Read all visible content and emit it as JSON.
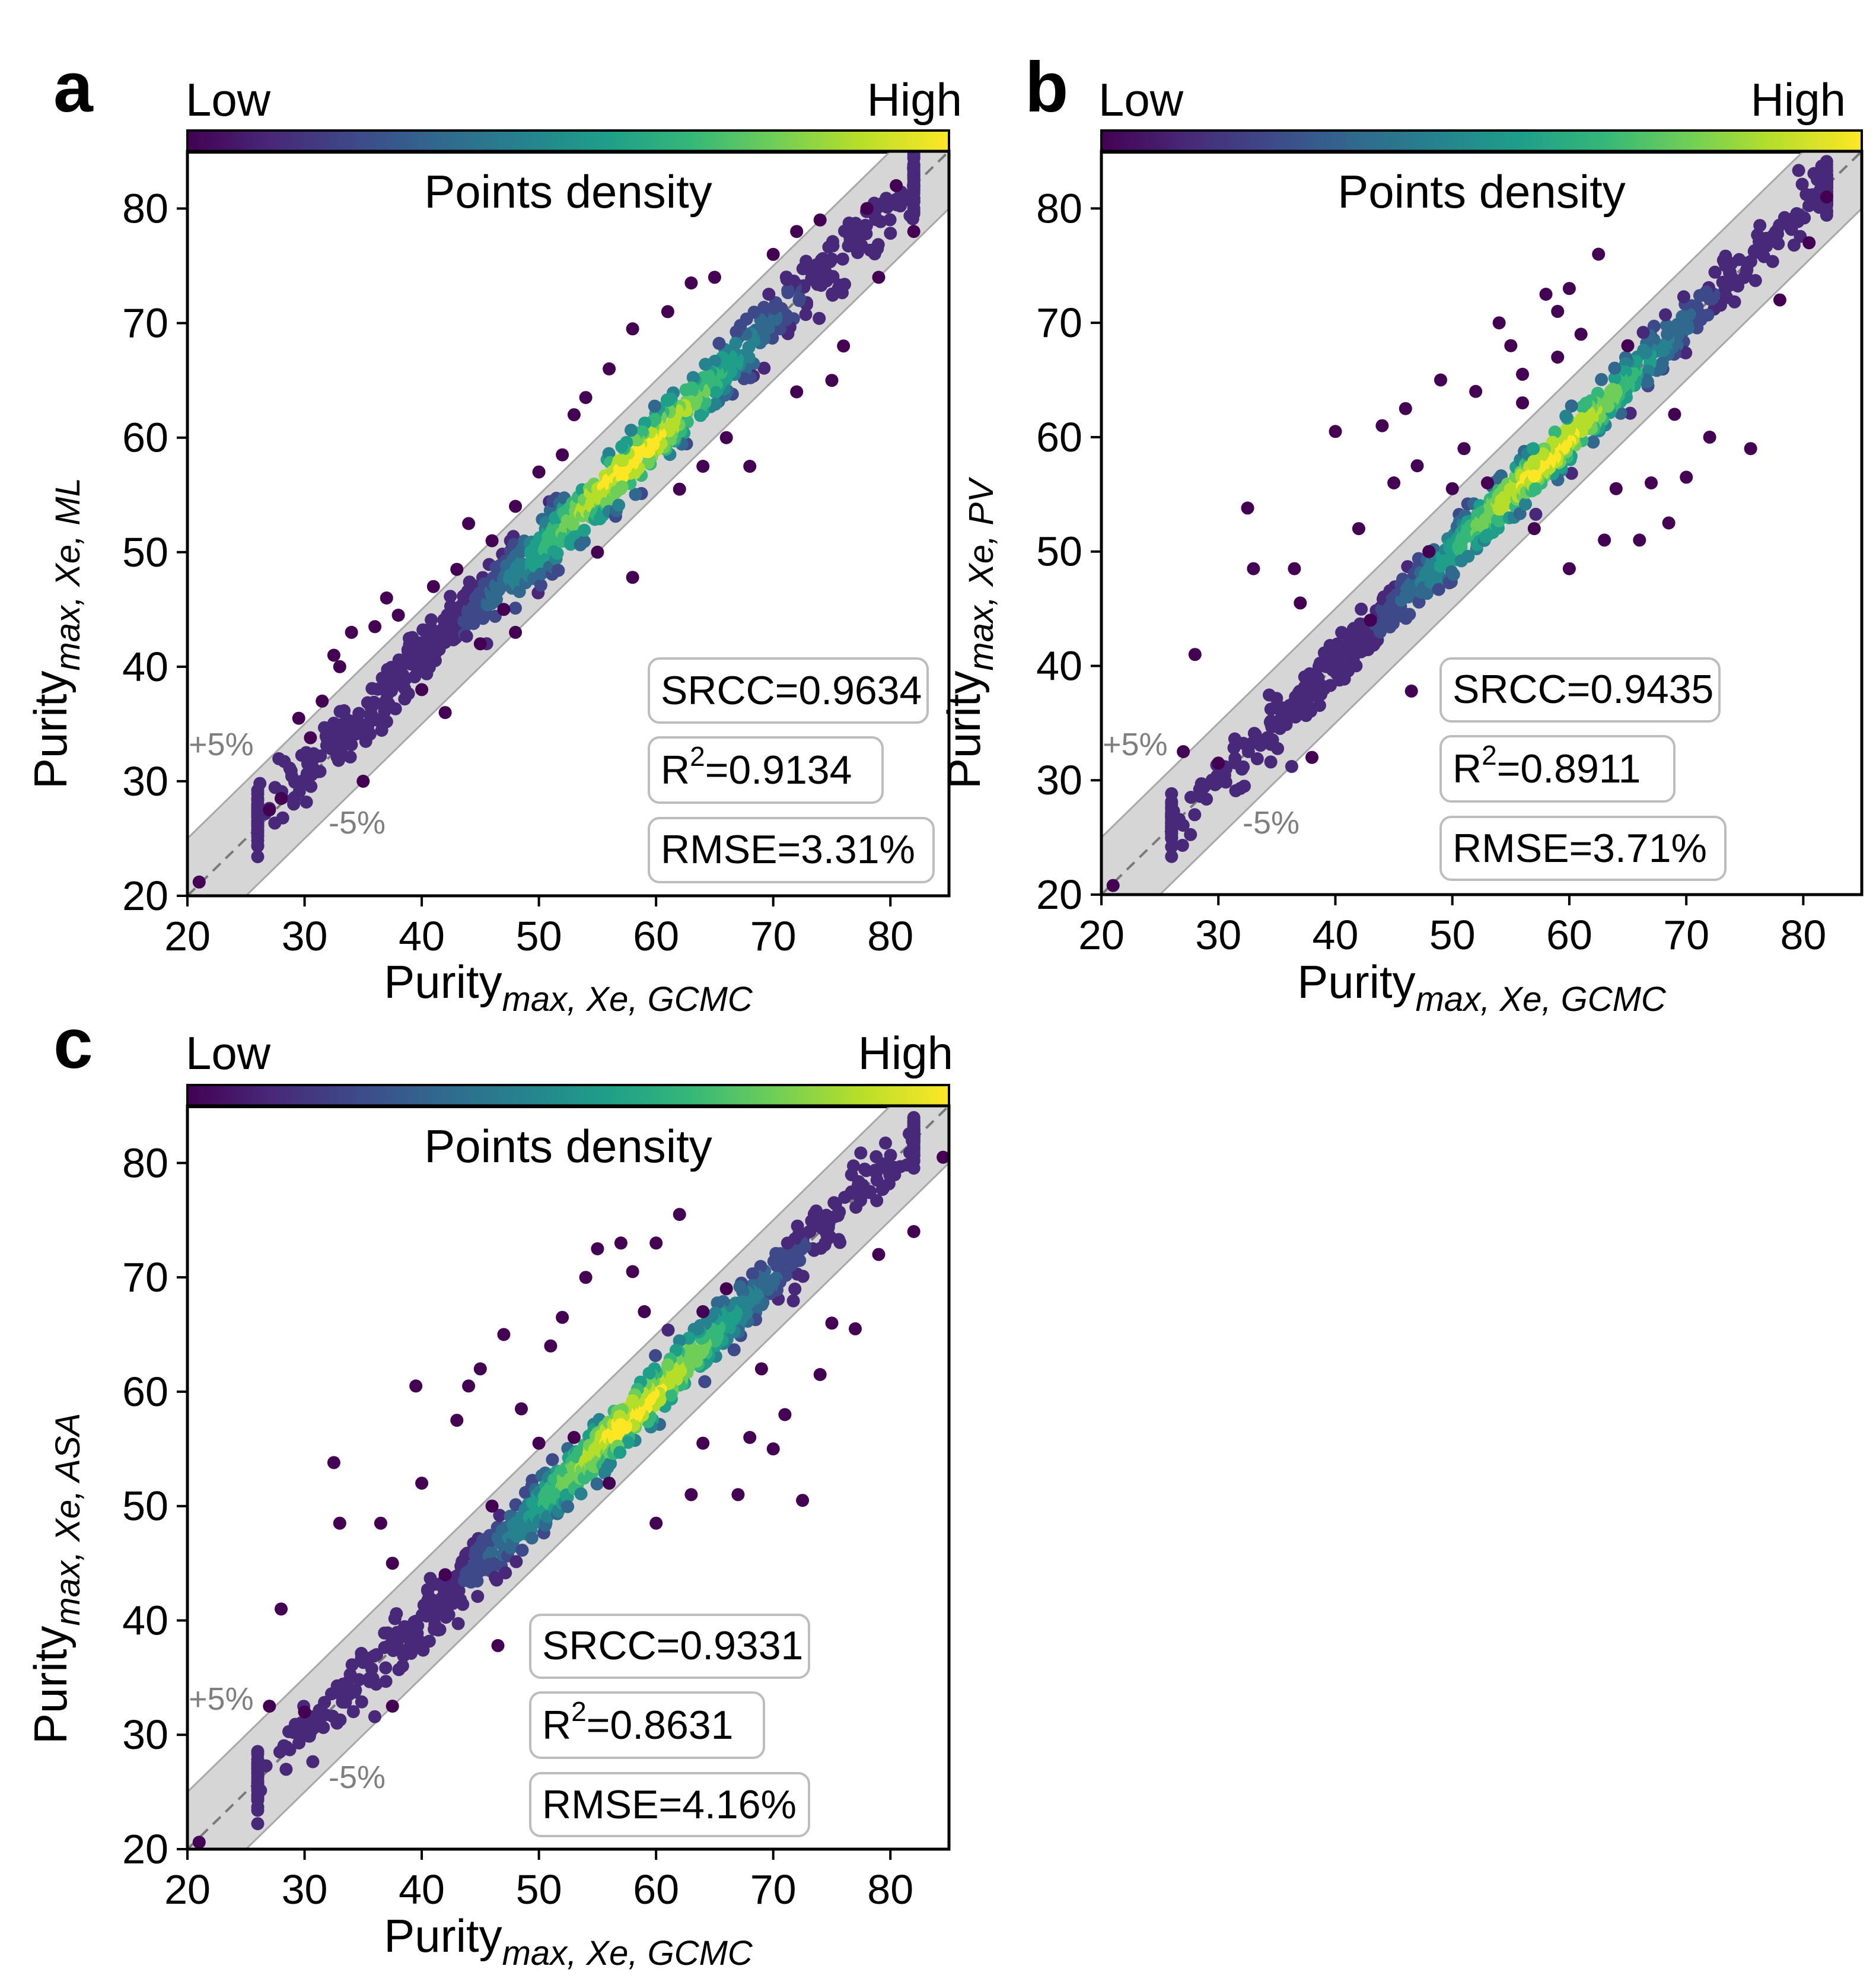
{
  "colormap": [
    "#440154",
    "#482878",
    "#3e4989",
    "#31688e",
    "#26828e",
    "#1f9e89",
    "#35b779",
    "#6ece58",
    "#b5de2b",
    "#fde725"
  ],
  "chart_data": [
    {
      "type": "scatter",
      "panel_label": "a",
      "ylabel_main": "Purity",
      "ylabel_sub": "max, Xe, ML",
      "xlabel_main": "Purity",
      "xlabel_sub": "max, Xe, GCMC",
      "xlim": [
        20,
        85
      ],
      "ylim": [
        20,
        85
      ],
      "xticks": [
        20,
        30,
        40,
        50,
        60,
        70,
        80
      ],
      "yticks": [
        20,
        30,
        40,
        50,
        60,
        70,
        80
      ],
      "colorbar": {
        "low": "Low",
        "high": "High",
        "label": "Points density"
      },
      "band": {
        "upper_label": "+5%",
        "lower_label": "-5%",
        "width": 5
      },
      "metrics": {
        "srcc": "SRCC=0.9634",
        "r2_prefix": "R",
        "r2_sup": "2",
        "r2_value": "=0.9134",
        "rmse": "RMSE=3.31%"
      },
      "outliers": [
        [
          21.0,
          21.2
        ],
        [
          27.0,
          27.5
        ],
        [
          28.0,
          28.5
        ],
        [
          30.5,
          33.8
        ],
        [
          31.5,
          37.0
        ],
        [
          32.5,
          41.0
        ],
        [
          33.0,
          40.0
        ],
        [
          29.5,
          35.5
        ],
        [
          34.0,
          43.0
        ],
        [
          36.0,
          43.5
        ],
        [
          37.0,
          46.0
        ],
        [
          41.0,
          47.0
        ],
        [
          43.0,
          48.5
        ],
        [
          44.0,
          52.5
        ],
        [
          46.0,
          51.0
        ],
        [
          47.0,
          45.0
        ],
        [
          48.0,
          54.0
        ],
        [
          52.0,
          58.5
        ],
        [
          53.0,
          62.0
        ],
        [
          54.0,
          63.5
        ],
        [
          56.0,
          66.0
        ],
        [
          58.0,
          69.5
        ],
        [
          61.0,
          71.0
        ],
        [
          63.0,
          73.5
        ],
        [
          65.0,
          74.0
        ],
        [
          70.0,
          76.0
        ],
        [
          72.0,
          78.0
        ],
        [
          74.0,
          79.0
        ],
        [
          78.0,
          80.0
        ],
        [
          80.5,
          82.0
        ],
        [
          58.0,
          47.8
        ],
        [
          64.0,
          57.5
        ],
        [
          68.0,
          57.5
        ],
        [
          72.0,
          64.0
        ],
        [
          75.0,
          65.0
        ],
        [
          62.0,
          55.5
        ],
        [
          38.0,
          44.5
        ],
        [
          50.0,
          57.0
        ],
        [
          40.0,
          38.0
        ],
        [
          45.0,
          42.0
        ],
        [
          35.0,
          30.0
        ],
        [
          42.0,
          36.0
        ],
        [
          48.0,
          43.0
        ],
        [
          55.0,
          50.0
        ],
        [
          66.0,
          60.0
        ],
        [
          76.0,
          68.0
        ],
        [
          79.0,
          74.0
        ],
        [
          82.0,
          78.0
        ]
      ]
    },
    {
      "type": "scatter",
      "panel_label": "b",
      "ylabel_main": "Purity",
      "ylabel_sub": "max, Xe, PV",
      "xlabel_main": "Purity",
      "xlabel_sub": "max, Xe, GCMC",
      "xlim": [
        20,
        85
      ],
      "ylim": [
        20,
        85
      ],
      "xticks": [
        20,
        30,
        40,
        50,
        60,
        70,
        80
      ],
      "yticks": [
        20,
        30,
        40,
        50,
        60,
        70,
        80
      ],
      "colorbar": {
        "low": "Low",
        "high": "High",
        "label": "Points density"
      },
      "band": {
        "upper_label": "+5%",
        "lower_label": "-5%",
        "width": 5
      },
      "metrics": {
        "srcc": "SRCC=0.9435",
        "r2_prefix": "R",
        "r2_sup": "2",
        "r2_value": "=0.8911",
        "rmse": "RMSE=3.71%"
      },
      "outliers": [
        [
          21.0,
          20.8
        ],
        [
          28.0,
          41.0
        ],
        [
          32.5,
          53.8
        ],
        [
          33.0,
          48.5
        ],
        [
          36.5,
          48.5
        ],
        [
          37.0,
          45.5
        ],
        [
          40.0,
          60.5
        ],
        [
          44.0,
          61.0
        ],
        [
          46.0,
          62.5
        ],
        [
          47.0,
          57.5
        ],
        [
          49.0,
          65.0
        ],
        [
          51.0,
          59.0
        ],
        [
          52.0,
          64.0
        ],
        [
          54.0,
          70.0
        ],
        [
          55.0,
          68.0
        ],
        [
          56.0,
          63.0
        ],
        [
          58.0,
          72.5
        ],
        [
          59.0,
          71.0
        ],
        [
          60.0,
          73.0
        ],
        [
          61.0,
          69.0
        ],
        [
          62.5,
          76.0
        ],
        [
          65.0,
          68.0
        ],
        [
          57.0,
          52.0
        ],
        [
          60.0,
          48.5
        ],
        [
          63.0,
          51.0
        ],
        [
          66.0,
          51.0
        ],
        [
          67.0,
          56.0
        ],
        [
          68.5,
          52.5
        ],
        [
          70.0,
          56.5
        ],
        [
          72.0,
          60.0
        ],
        [
          75.5,
          59.0
        ],
        [
          78.0,
          72.0
        ],
        [
          80.5,
          77.0
        ],
        [
          82.0,
          81.0
        ],
        [
          46.5,
          37.8
        ],
        [
          43.0,
          44.0
        ],
        [
          50.0,
          55.5
        ],
        [
          53.0,
          56.0
        ],
        [
          56.0,
          65.5
        ],
        [
          59.0,
          67.0
        ],
        [
          64.0,
          55.5
        ],
        [
          69.0,
          62.0
        ],
        [
          27.0,
          32.5
        ],
        [
          30.0,
          31.5
        ],
        [
          38.0,
          32.0
        ],
        [
          42.0,
          52.0
        ],
        [
          48.0,
          50.0
        ],
        [
          45.0,
          56.0
        ]
      ]
    },
    {
      "type": "scatter",
      "panel_label": "c",
      "ylabel_main": "Purity",
      "ylabel_sub": "max, Xe, ASA",
      "xlabel_main": "Purity",
      "xlabel_sub": "max, Xe, GCMC",
      "xlim": [
        20,
        85
      ],
      "ylim": [
        20,
        85
      ],
      "xticks": [
        20,
        30,
        40,
        50,
        60,
        70,
        80
      ],
      "yticks": [
        20,
        30,
        40,
        50,
        60,
        70,
        80
      ],
      "colorbar": {
        "low": "Low",
        "high": "High",
        "label": "Points density"
      },
      "band": {
        "upper_label": "+5%",
        "lower_label": "-5%",
        "width": 5
      },
      "metrics": {
        "srcc": "SRCC=0.9331",
        "r2_prefix": "R",
        "r2_sup": "2",
        "r2_value": "=0.8631",
        "rmse": "RMSE=4.16%"
      },
      "outliers": [
        [
          21.0,
          20.6
        ],
        [
          28.0,
          41.0
        ],
        [
          32.5,
          53.8
        ],
        [
          33.0,
          48.5
        ],
        [
          36.5,
          48.5
        ],
        [
          37.5,
          45.0
        ],
        [
          39.5,
          60.5
        ],
        [
          43.0,
          57.5
        ],
        [
          44.0,
          60.5
        ],
        [
          45.0,
          62.0
        ],
        [
          47.0,
          65.0
        ],
        [
          48.5,
          58.5
        ],
        [
          51.0,
          64.0
        ],
        [
          52.0,
          66.5
        ],
        [
          54.0,
          70.0
        ],
        [
          55.0,
          72.5
        ],
        [
          57.0,
          73.0
        ],
        [
          58.0,
          70.5
        ],
        [
          60.0,
          73.0
        ],
        [
          62.0,
          75.5
        ],
        [
          64.0,
          67.0
        ],
        [
          66.0,
          69.0
        ],
        [
          56.0,
          52.0
        ],
        [
          60.0,
          48.5
        ],
        [
          63.0,
          51.0
        ],
        [
          67.0,
          51.0
        ],
        [
          68.0,
          56.0
        ],
        [
          70.0,
          55.0
        ],
        [
          72.5,
          50.5
        ],
        [
          74.0,
          61.5
        ],
        [
          77.0,
          65.5
        ],
        [
          79.0,
          72.0
        ],
        [
          82.0,
          74.0
        ],
        [
          84.5,
          80.5
        ],
        [
          46.5,
          37.8
        ],
        [
          42.0,
          44.0
        ],
        [
          50.0,
          55.5
        ],
        [
          53.0,
          56.0
        ],
        [
          59.0,
          67.0
        ],
        [
          64.0,
          55.5
        ],
        [
          69.0,
          62.0
        ],
        [
          37.5,
          32.5
        ],
        [
          30.0,
          32.0
        ],
        [
          27.0,
          32.5
        ],
        [
          40.0,
          52.0
        ],
        [
          46.0,
          50.0
        ],
        [
          71.0,
          58.0
        ],
        [
          75.0,
          66.0
        ]
      ]
    }
  ]
}
